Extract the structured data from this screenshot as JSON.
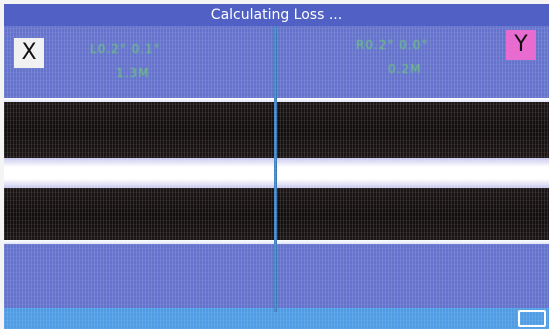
{
  "screen": {
    "status_title": "Calculating Loss ...",
    "x_camera_label": "X",
    "y_camera_label": "Y"
  },
  "readouts": {
    "left_angle": "L0.2°  0.1°",
    "left_offset": "1.3M",
    "right_angle": "R0.2°  0.0°",
    "right_offset": "0.2M"
  },
  "colors": {
    "background": "#6573cc",
    "readout_text": "#6cd66c",
    "y_button": "#e86bd0",
    "splice_line": "#4fa0e0",
    "bottom_strip": "#4f9ce4"
  },
  "icons": {
    "window_toggle": "window-toggle-icon"
  }
}
